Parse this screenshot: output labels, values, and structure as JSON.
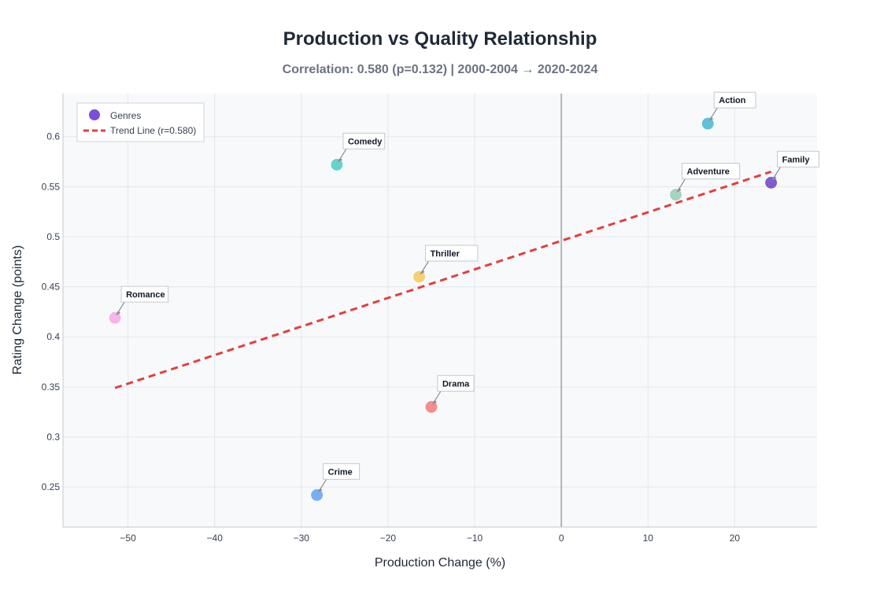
{
  "chart_data": {
    "type": "scatter",
    "title": "Production vs Quality Relationship",
    "subtitle": "Correlation: 0.580 (p=0.132) | 2000-2004 → 2020-2024",
    "xlabel": "Production Change (%)",
    "ylabel": "Rating Change (points)",
    "xlim": [
      -57.5,
      29.5
    ],
    "ylim": [
      0.21,
      0.643
    ],
    "x_ticks": [
      -50,
      -40,
      -30,
      -20,
      -10,
      0,
      10,
      20
    ],
    "y_ticks": [
      0.25,
      0.3,
      0.35,
      0.4,
      0.45,
      0.5,
      0.55,
      0.6
    ],
    "grid": true,
    "legend_position": "top-left",
    "legend": {
      "points_label": "Genres",
      "trend_label": "Trend Line (r=0.580)"
    },
    "points": [
      {
        "name": "Action",
        "x": 16.9,
        "y": 0.613,
        "color": "#45b7d1"
      },
      {
        "name": "Comedy",
        "x": -25.9,
        "y": 0.572,
        "color": "#4ecdc4"
      },
      {
        "name": "Family",
        "x": 24.2,
        "y": 0.554,
        "color": "#6c3fc9"
      },
      {
        "name": "Adventure",
        "x": 13.2,
        "y": 0.542,
        "color": "#96ceb4"
      },
      {
        "name": "Thriller",
        "x": -16.4,
        "y": 0.46,
        "color": "#f7c95c"
      },
      {
        "name": "Romance",
        "x": -51.5,
        "y": 0.419,
        "color": "#f9a8e6"
      },
      {
        "name": "Drama",
        "x": -15.0,
        "y": 0.33,
        "color": "#f47a7a"
      },
      {
        "name": "Crime",
        "x": -28.2,
        "y": 0.242,
        "color": "#5ea3f2"
      }
    ],
    "trend_line": {
      "x": [
        -51.5,
        24.2
      ],
      "y": [
        0.349,
        0.565
      ],
      "color": "#e53e3e"
    }
  }
}
